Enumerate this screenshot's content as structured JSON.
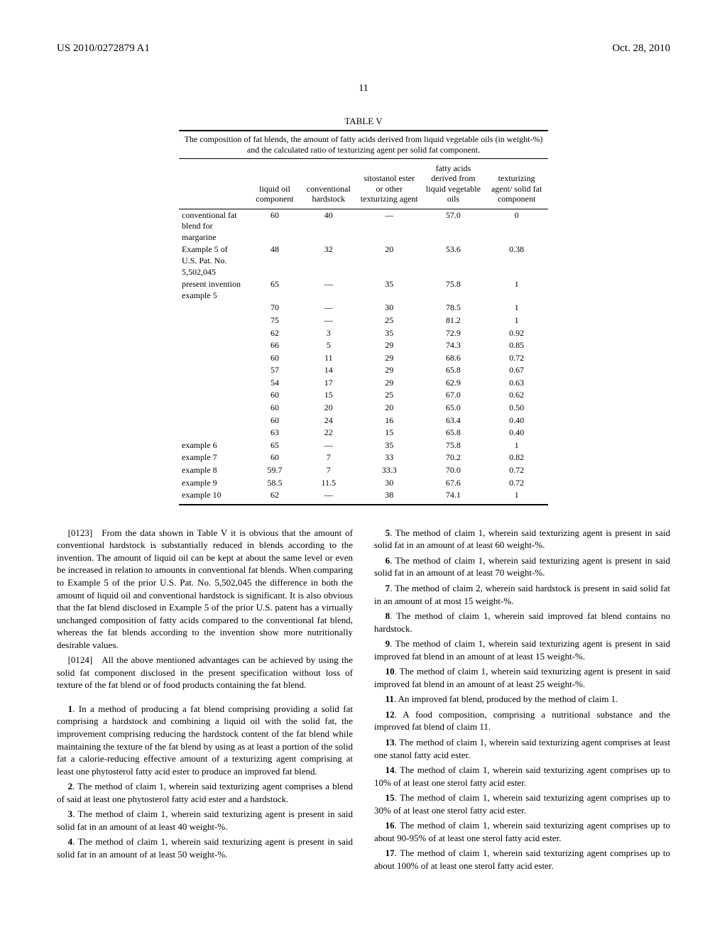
{
  "header": {
    "pub_id": "US 2010/0272879 A1",
    "pub_date": "Oct. 28, 2010",
    "page_num": "11"
  },
  "table": {
    "title": "TABLE V",
    "caption": "The composition of fat blends, the amount of fatty acids derived from liquid vegetable oils (in weight-%) and the calculated ratio of texturizing agent per solid fat component.",
    "columns": [
      "",
      "liquid oil component",
      "conventional hardstock",
      "sitostanol ester or other texturizing agent",
      "fatty acids derived from liquid vegetable oils",
      "texturizing agent/ solid fat component"
    ],
    "rows": [
      [
        "conventional fat blend for margarine",
        "60",
        "40",
        "—",
        "57.0",
        "0"
      ],
      [
        "Example 5 of U.S. Pat. No. 5,502,045",
        "48",
        "32",
        "20",
        "53.6",
        "0.38"
      ],
      [
        "present invention example 5",
        "65",
        "—",
        "35",
        "75.8",
        "1"
      ],
      [
        "",
        "70",
        "—",
        "30",
        "78.5",
        "1"
      ],
      [
        "",
        "75",
        "—",
        "25",
        "81.2",
        "1"
      ],
      [
        "",
        "62",
        "3",
        "35",
        "72.9",
        "0.92"
      ],
      [
        "",
        "66",
        "5",
        "29",
        "74.3",
        "0.85"
      ],
      [
        "",
        "60",
        "11",
        "29",
        "68.6",
        "0.72"
      ],
      [
        "",
        "57",
        "14",
        "29",
        "65.8",
        "0.67"
      ],
      [
        "",
        "54",
        "17",
        "29",
        "62.9",
        "0.63"
      ],
      [
        "",
        "60",
        "15",
        "25",
        "67.0",
        "0.62"
      ],
      [
        "",
        "60",
        "20",
        "20",
        "65.0",
        "0.50"
      ],
      [
        "",
        "60",
        "24",
        "16",
        "63.4",
        "0.40"
      ],
      [
        "",
        "63",
        "22",
        "15",
        "65.8",
        "0.40"
      ],
      [
        "example 6",
        "65",
        "—",
        "35",
        "75.8",
        "1"
      ],
      [
        "example 7",
        "60",
        "7",
        "33",
        "70.2",
        "0.82"
      ],
      [
        "example 8",
        "59.7",
        "7",
        "33.3",
        "70.0",
        "0.72"
      ],
      [
        "example 9",
        "58.5",
        "11.5",
        "30",
        "67.6",
        "0.72"
      ],
      [
        "example 10",
        "62",
        "—",
        "38",
        "74.1",
        "1"
      ]
    ]
  },
  "paragraphs": [
    {
      "num": "[0123]",
      "text": "From the data shown in Table V it is obvious that the amount of conventional hardstock is substantially reduced in blends according to the invention. The amount of liquid oil can be kept at about the same level or even be increased in relation to amounts in conventional fat blends. When comparing to Example 5 of the prior U.S. Pat. No. 5,502,045 the difference in both the amount of liquid oil and conventional hardstock is significant. It is also obvious that the fat blend disclosed in Example 5 of the prior U.S. patent has a virtually unchanged composition of fatty acids compared to the conventional fat blend, whereas the fat blends according to the invention show more nutritionally desirable values."
    },
    {
      "num": "[0124]",
      "text": "All the above mentioned advantages can be achieved by using the solid fat component disclosed in the present specification without loss of texture of the fat blend or of food products containing the fat blend."
    }
  ],
  "claims": [
    {
      "num": "1",
      "text": "In a method of producing a fat blend comprising providing a solid fat comprising a hardstock and combining a liquid oil with the solid fat, the improvement comprising reducing the hardstock content of the fat blend while maintaining the texture of the fat blend by using as at least a portion of the solid fat a calorie-reducing effective amount of a texturizing agent comprising at least one phytosterol fatty acid ester to produce an improved fat blend."
    },
    {
      "num": "2",
      "text": "The method of claim 1, wherein said texturizing agent comprises a blend of said at least one phytosterol fatty acid ester and a hardstock."
    },
    {
      "num": "3",
      "text": "The method of claim 1, wherein said texturizing agent is present in said solid fat in an amount of at least 40 weight-%."
    },
    {
      "num": "4",
      "text": "The method of claim 1, wherein said texturizing agent is present in said solid fat in an amount of at least 50 weight-%."
    },
    {
      "num": "5",
      "text": "The method of claim 1, wherein said texturizing agent is present in said solid fat in an amount of at least 60 weight-%."
    },
    {
      "num": "6",
      "text": "The method of claim 1, wherein said texturizing agent is present in said solid fat in an amount of at least 70 weight-%."
    },
    {
      "num": "7",
      "text": "The method of claim 2, wherein said hardstock is present in said solid fat in an amount of at most 15 weight-%."
    },
    {
      "num": "8",
      "text": "The method of claim 1, wherein said improved fat blend contains no hardstock."
    },
    {
      "num": "9",
      "text": "The method of claim 1, wherein said texturizing agent is present in said improved fat blend in an amount of at least 15 weight-%."
    },
    {
      "num": "10",
      "text": "The method of claim 1, wherein said texturizing agent is present in said improved fat blend in an amount of at least 25 weight-%."
    },
    {
      "num": "11",
      "text": "An improved fat blend, produced by the method of claim 1."
    },
    {
      "num": "12",
      "text": "A food composition, comprising a nutritional substance and the improved fat blend of claim 11."
    },
    {
      "num": "13",
      "text": "The method of claim 1, wherein said texturizing agent comprises at least one stanol fatty acid ester."
    },
    {
      "num": "14",
      "text": "The method of claim 1, wherein said texturizing agent comprises up to 10% of at least one sterol fatty acid ester."
    },
    {
      "num": "15",
      "text": "The method of claim 1, wherein said texturizing agent comprises up to 30% of at least one sterol fatty acid ester."
    },
    {
      "num": "16",
      "text": "The method of claim 1, wherein said texturizing agent comprises up to about 90-95% of at least one sterol fatty acid ester."
    },
    {
      "num": "17",
      "text": "The method of claim 1, wherein said texturizing agent comprises up to about 100% of at least one sterol fatty acid ester."
    }
  ]
}
